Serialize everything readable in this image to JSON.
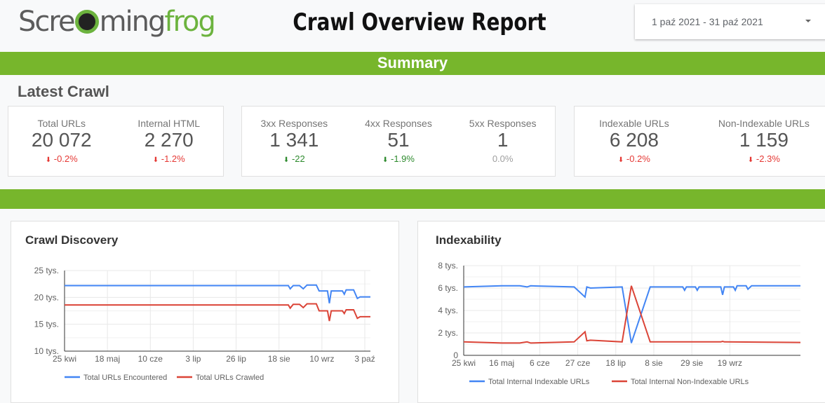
{
  "header": {
    "logo_text_a": "Scre",
    "logo_text_b": "ming",
    "logo_text_c": "frog",
    "title": "Crawl Overview Report",
    "date_range": "1 paź 2021 - 31 paź 2021"
  },
  "summary_label": "Summary",
  "latest_label": "Latest Crawl",
  "cards": [
    [
      {
        "label": "Total URLs",
        "value": "20 072",
        "delta": "-0.2%",
        "tone": "red"
      },
      {
        "label": "Internal HTML",
        "value": "2 270",
        "delta": "-1.2%",
        "tone": "red"
      }
    ],
    [
      {
        "label": "3xx Responses",
        "value": "1 341",
        "delta": "-22",
        "tone": "grn"
      },
      {
        "label": "4xx Responses",
        "value": "51",
        "delta": "-1.9%",
        "tone": "grn"
      },
      {
        "label": "5xx Responses",
        "value": "1",
        "delta": "0.0%",
        "tone": "gry"
      }
    ],
    [
      {
        "label": "Indexable URLs",
        "value": "6 208",
        "delta": "-0.2%",
        "tone": "red"
      },
      {
        "label": "Non-Indexable URLs",
        "value": "1 159",
        "delta": "-2.3%",
        "tone": "red"
      }
    ]
  ],
  "colors": {
    "blue": "#4285f4",
    "red": "#db4437",
    "green": "#77b62c"
  },
  "chart_data": [
    {
      "type": "line",
      "title": "Crawl Discovery",
      "x_unit": "days since 25 kwi",
      "xlim": [
        0,
        164
      ],
      "ylim": [
        10,
        25
      ],
      "yticks": [
        {
          "v": 10,
          "label": "10 tys."
        },
        {
          "v": 15,
          "label": "15 tys."
        },
        {
          "v": 20,
          "label": "20 tys."
        },
        {
          "v": 25,
          "label": "25 tys."
        }
      ],
      "xticks": [
        {
          "v": 0,
          "label": "25 kwi"
        },
        {
          "v": 23,
          "label": "18 maj"
        },
        {
          "v": 46,
          "label": "10 cze"
        },
        {
          "v": 69,
          "label": "3 lip"
        },
        {
          "v": 92,
          "label": "26 lip"
        },
        {
          "v": 115,
          "label": "18 sie"
        },
        {
          "v": 138,
          "label": "10 wrz"
        },
        {
          "v": 161,
          "label": "3 paź"
        }
      ],
      "series": [
        {
          "name": "Total URLs Encountered",
          "color": "#4285f4",
          "points": [
            [
              0,
              22.2
            ],
            [
              120,
              22.2
            ],
            [
              121,
              21.6
            ],
            [
              122.6,
              22.2
            ],
            [
              126,
              22.2
            ],
            [
              128,
              21.6
            ],
            [
              130,
              22.3
            ],
            [
              135,
              22.3
            ],
            [
              136.5,
              21.2
            ],
            [
              141,
              21.2
            ],
            [
              142,
              18.9
            ],
            [
              143,
              21.2
            ],
            [
              149,
              21.2
            ],
            [
              150,
              20.6
            ],
            [
              151,
              21.4
            ],
            [
              155,
              21.4
            ],
            [
              157,
              19.8
            ],
            [
              158.5,
              20.1
            ],
            [
              164,
              20.1
            ]
          ]
        },
        {
          "name": "Total URLs Crawled",
          "color": "#db4437",
          "points": [
            [
              0,
              18.6
            ],
            [
              120,
              18.6
            ],
            [
              121,
              18.0
            ],
            [
              122.6,
              18.7
            ],
            [
              126,
              18.7
            ],
            [
              128,
              18.1
            ],
            [
              130,
              18.8
            ],
            [
              135,
              18.8
            ],
            [
              136.5,
              17.5
            ],
            [
              141,
              17.5
            ],
            [
              142,
              15.6
            ],
            [
              143,
              17.5
            ],
            [
              149,
              17.5
            ],
            [
              150,
              17.0
            ],
            [
              151,
              17.7
            ],
            [
              155,
              17.7
            ],
            [
              157,
              16.1
            ],
            [
              158.5,
              16.4
            ],
            [
              164,
              16.4
            ]
          ]
        }
      ]
    },
    {
      "type": "line",
      "title": "Indexability",
      "x_unit": "days since 25 kwi",
      "xlim": [
        0,
        186
      ],
      "ylim": [
        0,
        8
      ],
      "yticks": [
        {
          "v": 0,
          "label": "0"
        },
        {
          "v": 2,
          "label": "2 tys."
        },
        {
          "v": 4,
          "label": "4 tys."
        },
        {
          "v": 6,
          "label": "6 tys."
        },
        {
          "v": 8,
          "label": "8 tys."
        }
      ],
      "xticks": [
        {
          "v": 0,
          "label": "25 kwi"
        },
        {
          "v": 21,
          "label": "16 maj"
        },
        {
          "v": 42,
          "label": "6 cze"
        },
        {
          "v": 63,
          "label": "27 cze"
        },
        {
          "v": 84,
          "label": "18 lip"
        },
        {
          "v": 105,
          "label": "8 sie"
        },
        {
          "v": 126,
          "label": "29 sie"
        },
        {
          "v": 147,
          "label": "19 wrz"
        }
      ],
      "series": [
        {
          "name": "Total Internal Indexable URLs",
          "color": "#4285f4",
          "points": [
            [
              0,
              6.1
            ],
            [
              21,
              6.2
            ],
            [
              31,
              6.2
            ],
            [
              35,
              6.1
            ],
            [
              37,
              6.2
            ],
            [
              61,
              6.1
            ],
            [
              67,
              5.2
            ],
            [
              68,
              6.1
            ],
            [
              70,
              6.0
            ],
            [
              87.5,
              6.1
            ],
            [
              92.6,
              1.1
            ],
            [
              103,
              6.1
            ],
            [
              121,
              6.1
            ],
            [
              122,
              5.8
            ],
            [
              123,
              6.1
            ],
            [
              128,
              6.1
            ],
            [
              129,
              5.8
            ],
            [
              130,
              6.1
            ],
            [
              142,
              6.1
            ],
            [
              143,
              5.4
            ],
            [
              144,
              6.1
            ],
            [
              149,
              6.1
            ],
            [
              150,
              5.8
            ],
            [
              151,
              6.2
            ],
            [
              156,
              6.2
            ],
            [
              157,
              5.9
            ],
            [
              159,
              6.2
            ],
            [
              186,
              6.2
            ]
          ]
        },
        {
          "name": "Total Internal Non-Indexable URLs",
          "color": "#db4437",
          "points": [
            [
              0,
              1.2
            ],
            [
              21,
              1.1
            ],
            [
              31,
              1.1
            ],
            [
              35,
              1.2
            ],
            [
              37,
              1.1
            ],
            [
              61,
              1.2
            ],
            [
              67,
              2.1
            ],
            [
              68,
              1.3
            ],
            [
              70,
              1.35
            ],
            [
              87.5,
              1.2
            ],
            [
              92.6,
              6.2
            ],
            [
              103,
              1.2
            ],
            [
              142,
              1.2
            ],
            [
              143,
              1.25
            ],
            [
              144,
              1.2
            ],
            [
              186,
              1.15
            ]
          ]
        }
      ]
    }
  ]
}
